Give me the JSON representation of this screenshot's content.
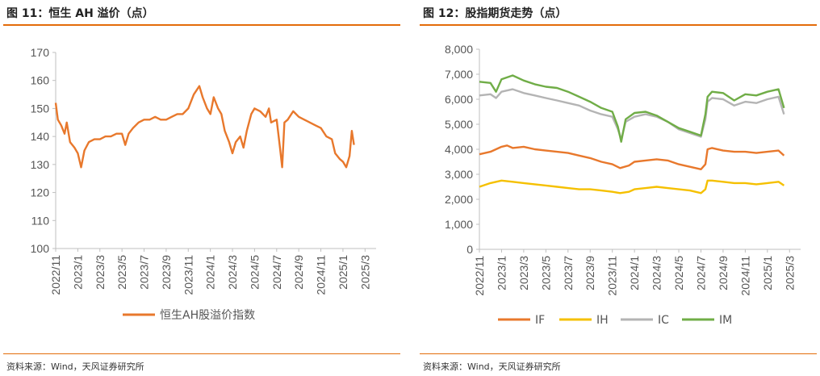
{
  "charts": [
    {
      "figure_title": "图 11：恒生 AH 溢价（点）",
      "source": "资料来源：Wind，天风证券研究所"
    },
    {
      "figure_title": "图 12：股指期货走势（点）",
      "source": "资料来源：Wind，天风证券研究所"
    }
  ],
  "chart_data": [
    {
      "type": "line",
      "title": "恒生 AH 溢价（点）",
      "ylim": [
        100,
        170
      ],
      "yticks": [
        "100",
        "110",
        "120",
        "130",
        "140",
        "150",
        "160",
        "170"
      ],
      "xticks": [
        "2022/11",
        "2023/1",
        "2023/3",
        "2023/5",
        "2023/7",
        "2023/9",
        "2023/11",
        "2024/1",
        "2024/3",
        "2024/5",
        "2024/7",
        "2024/9",
        "2024/11",
        "2025/1",
        "2025/3"
      ],
      "x_range_months": [
        0,
        29
      ],
      "series": [
        {
          "name": "恒生AH股溢价指数",
          "color": "#e8782c",
          "points": [
            [
              0,
              152
            ],
            [
              0.2,
              146
            ],
            [
              0.5,
              144
            ],
            [
              0.8,
              141
            ],
            [
              1.0,
              145
            ],
            [
              1.3,
              138
            ],
            [
              1.7,
              136
            ],
            [
              2.0,
              134
            ],
            [
              2.3,
              129
            ],
            [
              2.6,
              135
            ],
            [
              3.0,
              138
            ],
            [
              3.5,
              139
            ],
            [
              4.0,
              139
            ],
            [
              4.5,
              140
            ],
            [
              5.0,
              140
            ],
            [
              5.5,
              141
            ],
            [
              6.0,
              141
            ],
            [
              6.3,
              137
            ],
            [
              6.6,
              141
            ],
            [
              7.0,
              143
            ],
            [
              7.5,
              145
            ],
            [
              8.0,
              146
            ],
            [
              8.5,
              146
            ],
            [
              9.0,
              147
            ],
            [
              9.5,
              146
            ],
            [
              10.0,
              146
            ],
            [
              10.5,
              147
            ],
            [
              11.0,
              148
            ],
            [
              11.5,
              148
            ],
            [
              12.0,
              150
            ],
            [
              12.5,
              155
            ],
            [
              13.0,
              158
            ],
            [
              13.3,
              154
            ],
            [
              13.7,
              150
            ],
            [
              14.0,
              148
            ],
            [
              14.3,
              154
            ],
            [
              14.7,
              150
            ],
            [
              15.0,
              148
            ],
            [
              15.3,
              142
            ],
            [
              15.7,
              138
            ],
            [
              16.0,
              134
            ],
            [
              16.3,
              138
            ],
            [
              16.7,
              140
            ],
            [
              17.0,
              136
            ],
            [
              17.3,
              142
            ],
            [
              17.7,
              148
            ],
            [
              18.0,
              150
            ],
            [
              18.5,
              149
            ],
            [
              19.0,
              147
            ],
            [
              19.3,
              150
            ],
            [
              19.5,
              145
            ],
            [
              20.0,
              146
            ],
            [
              20.3,
              136
            ],
            [
              20.5,
              129
            ],
            [
              20.7,
              145
            ],
            [
              21.0,
              146
            ],
            [
              21.5,
              149
            ],
            [
              22.0,
              147
            ],
            [
              22.5,
              146
            ],
            [
              23.0,
              145
            ],
            [
              23.5,
              144
            ],
            [
              24.0,
              143
            ],
            [
              24.5,
              140
            ],
            [
              25.0,
              139
            ],
            [
              25.3,
              134
            ],
            [
              25.7,
              132
            ],
            [
              26.0,
              131
            ],
            [
              26.3,
              129
            ],
            [
              26.6,
              133
            ],
            [
              26.8,
              142
            ],
            [
              27.0,
              137
            ]
          ]
        }
      ]
    },
    {
      "type": "line",
      "title": "股指期货走势（点）",
      "ylim": [
        0,
        8000
      ],
      "yticks": [
        "0",
        "1,000",
        "2,000",
        "3,000",
        "4,000",
        "5,000",
        "6,000",
        "7,000",
        "8,000"
      ],
      "xticks": [
        "2022/11",
        "2023/1",
        "2023/3",
        "2023/5",
        "2023/7",
        "2023/9",
        "2023/11",
        "2024/1",
        "2024/3",
        "2024/5",
        "2024/7",
        "2024/9",
        "2024/11",
        "2025/1",
        "2025/3"
      ],
      "x_range_months": [
        0,
        29
      ],
      "series": [
        {
          "name": "IF",
          "color": "#e8782c",
          "points": [
            [
              0,
              3800
            ],
            [
              1,
              3900
            ],
            [
              2,
              4100
            ],
            [
              2.5,
              4150
            ],
            [
              3,
              4050
            ],
            [
              4,
              4100
            ],
            [
              5,
              4000
            ],
            [
              6,
              3950
            ],
            [
              7,
              3900
            ],
            [
              8,
              3850
            ],
            [
              9,
              3750
            ],
            [
              10,
              3650
            ],
            [
              11,
              3500
            ],
            [
              12,
              3400
            ],
            [
              12.7,
              3250
            ],
            [
              13.5,
              3350
            ],
            [
              14,
              3500
            ],
            [
              15,
              3550
            ],
            [
              16,
              3600
            ],
            [
              17,
              3550
            ],
            [
              18,
              3400
            ],
            [
              19,
              3300
            ],
            [
              20,
              3200
            ],
            [
              20.4,
              3400
            ],
            [
              20.6,
              4000
            ],
            [
              21,
              4050
            ],
            [
              22,
              3950
            ],
            [
              23,
              3900
            ],
            [
              24,
              3900
            ],
            [
              25,
              3850
            ],
            [
              26,
              3900
            ],
            [
              27,
              3950
            ],
            [
              27.5,
              3750
            ]
          ]
        },
        {
          "name": "IH",
          "color": "#f5c000",
          "points": [
            [
              0,
              2500
            ],
            [
              1,
              2650
            ],
            [
              2,
              2750
            ],
            [
              3,
              2700
            ],
            [
              4,
              2650
            ],
            [
              5,
              2600
            ],
            [
              6,
              2550
            ],
            [
              7,
              2500
            ],
            [
              8,
              2450
            ],
            [
              9,
              2400
            ],
            [
              10,
              2400
            ],
            [
              11,
              2350
            ],
            [
              12,
              2300
            ],
            [
              12.7,
              2250
            ],
            [
              13.5,
              2300
            ],
            [
              14,
              2400
            ],
            [
              15,
              2450
            ],
            [
              16,
              2500
            ],
            [
              17,
              2450
            ],
            [
              18,
              2400
            ],
            [
              19,
              2350
            ],
            [
              20,
              2250
            ],
            [
              20.4,
              2400
            ],
            [
              20.6,
              2750
            ],
            [
              21,
              2750
            ],
            [
              22,
              2700
            ],
            [
              23,
              2650
            ],
            [
              24,
              2650
            ],
            [
              25,
              2600
            ],
            [
              26,
              2650
            ],
            [
              27,
              2700
            ],
            [
              27.5,
              2550
            ]
          ]
        },
        {
          "name": "IC",
          "color": "#b4b4b4",
          "points": [
            [
              0,
              6150
            ],
            [
              1,
              6200
            ],
            [
              1.5,
              6050
            ],
            [
              2,
              6300
            ],
            [
              3,
              6400
            ],
            [
              4,
              6250
            ],
            [
              5,
              6150
            ],
            [
              6,
              6050
            ],
            [
              7,
              5950
            ],
            [
              8,
              5850
            ],
            [
              9,
              5750
            ],
            [
              10,
              5550
            ],
            [
              11,
              5400
            ],
            [
              12,
              5300
            ],
            [
              12.5,
              4800
            ],
            [
              12.8,
              4400
            ],
            [
              13.2,
              5100
            ],
            [
              14,
              5300
            ],
            [
              15,
              5400
            ],
            [
              16,
              5300
            ],
            [
              17,
              5100
            ],
            [
              18,
              4800
            ],
            [
              19,
              4650
            ],
            [
              20,
              4500
            ],
            [
              20.4,
              5200
            ],
            [
              20.6,
              5900
            ],
            [
              21,
              6050
            ],
            [
              22,
              6000
            ],
            [
              23,
              5750
            ],
            [
              24,
              5900
            ],
            [
              25,
              5850
            ],
            [
              26,
              6000
            ],
            [
              27,
              6100
            ],
            [
              27.5,
              5400
            ]
          ]
        },
        {
          "name": "IM",
          "color": "#70ad47",
          "points": [
            [
              0,
              6700
            ],
            [
              1,
              6650
            ],
            [
              1.5,
              6300
            ],
            [
              2,
              6800
            ],
            [
              3,
              6950
            ],
            [
              4,
              6750
            ],
            [
              5,
              6600
            ],
            [
              6,
              6500
            ],
            [
              7,
              6450
            ],
            [
              8,
              6300
            ],
            [
              9,
              6100
            ],
            [
              10,
              5900
            ],
            [
              11,
              5650
            ],
            [
              12,
              5500
            ],
            [
              12.5,
              4900
            ],
            [
              12.8,
              4300
            ],
            [
              13.2,
              5200
            ],
            [
              14,
              5450
            ],
            [
              15,
              5500
            ],
            [
              16,
              5350
            ],
            [
              17,
              5100
            ],
            [
              18,
              4850
            ],
            [
              19,
              4700
            ],
            [
              20,
              4550
            ],
            [
              20.4,
              5400
            ],
            [
              20.6,
              6100
            ],
            [
              21,
              6300
            ],
            [
              22,
              6250
            ],
            [
              23,
              5950
            ],
            [
              24,
              6200
            ],
            [
              25,
              6150
            ],
            [
              26,
              6300
            ],
            [
              27,
              6400
            ],
            [
              27.5,
              5650
            ]
          ]
        }
      ]
    }
  ]
}
